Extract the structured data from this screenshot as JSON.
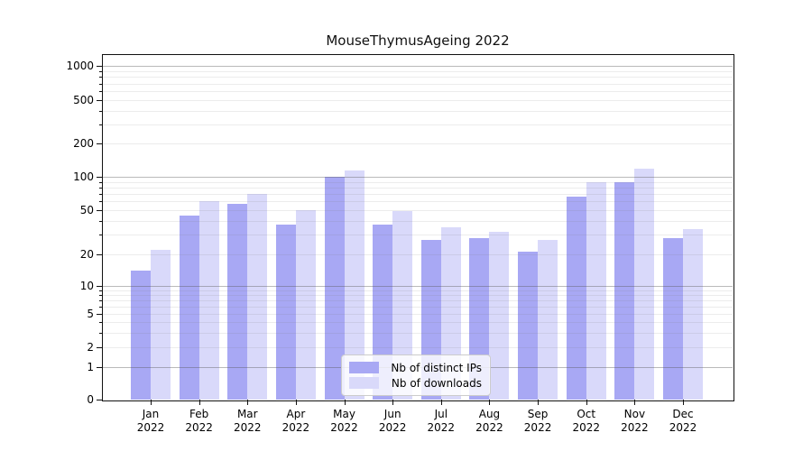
{
  "chart_data": {
    "type": "bar",
    "title": "MouseThymusAgeing 2022",
    "categories": [
      "Jan 2022",
      "Feb 2022",
      "Mar 2022",
      "Apr 2022",
      "May 2022",
      "Jun 2022",
      "Jul 2022",
      "Aug 2022",
      "Sep 2022",
      "Oct 2022",
      "Nov 2022",
      "Dec 2022"
    ],
    "series": [
      {
        "name": "Nb of distinct IPs",
        "color": "#a8a8f4",
        "values": [
          14,
          45,
          57,
          37,
          100,
          37,
          27,
          28,
          21,
          66,
          90,
          28
        ]
      },
      {
        "name": "Nb of downloads",
        "color": "#d9d9fa",
        "values": [
          22,
          60,
          70,
          50,
          115,
          49,
          35,
          32,
          27,
          89,
          118,
          34
        ]
      }
    ],
    "xlabel": "",
    "ylabel": "",
    "y_axis": {
      "scale": "log-like (asinh), 0 at baseline",
      "tick_labels": [
        "0",
        "1",
        "2",
        "5",
        "10",
        "20",
        "50",
        "100",
        "200",
        "500",
        "1000"
      ],
      "tick_values": [
        0,
        1,
        2,
        5,
        10,
        20,
        50,
        100,
        200,
        500,
        1000
      ],
      "ylim": [
        0,
        1400
      ]
    },
    "grid": "horizontal major+minor, drawn over bars",
    "legend": {
      "position": "bottom-center",
      "entries": [
        "Nb of distinct IPs",
        "Nb of downloads"
      ]
    },
    "colors": {
      "background": "#ffffff",
      "bar_ips": "#a8a8f4",
      "bar_downloads": "#d9d9fa",
      "grid_major": "#bdbdbd",
      "grid_minor": "#ededed",
      "spine": "#111111"
    }
  }
}
